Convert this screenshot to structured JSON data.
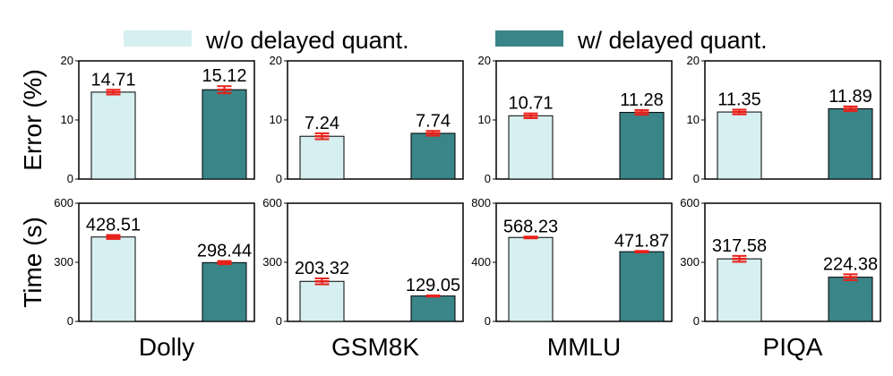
{
  "legend": {
    "items": [
      {
        "label": "w/o delayed quant.",
        "color": "#d6eff1"
      },
      {
        "label": "w/ delayed quant.",
        "color": "#3a8588"
      }
    ]
  },
  "colors": {
    "without": "#d6eff1",
    "with": "#3a8588",
    "error_bar": "#e8201a",
    "edge": "#000000"
  },
  "chart_data": [
    {
      "type": "bar",
      "row": "error",
      "dataset": "Dolly",
      "series": [
        {
          "name": "w/o delayed quant.",
          "value": 14.71,
          "err": 0.4
        },
        {
          "name": "w/ delayed quant.",
          "value": 15.12,
          "err": 0.6
        }
      ],
      "ylabel": "Error (%)",
      "ylim": [
        0,
        20
      ],
      "yticks": [
        0,
        10,
        20
      ],
      "xlabel": ""
    },
    {
      "type": "bar",
      "row": "error",
      "dataset": "GSM8K",
      "series": [
        {
          "name": "w/o delayed quant.",
          "value": 7.24,
          "err": 0.5
        },
        {
          "name": "w/ delayed quant.",
          "value": 7.74,
          "err": 0.4
        }
      ],
      "ylim": [
        0,
        20
      ],
      "yticks": [
        0,
        10,
        20
      ],
      "xlabel": ""
    },
    {
      "type": "bar",
      "row": "error",
      "dataset": "MMLU",
      "series": [
        {
          "name": "w/o delayed quant.",
          "value": 10.71,
          "err": 0.4
        },
        {
          "name": "w/ delayed quant.",
          "value": 11.28,
          "err": 0.4
        }
      ],
      "ylim": [
        0,
        20
      ],
      "yticks": [
        0,
        10,
        20
      ],
      "xlabel": ""
    },
    {
      "type": "bar",
      "row": "error",
      "dataset": "PIQA",
      "series": [
        {
          "name": "w/o delayed quant.",
          "value": 11.35,
          "err": 0.4
        },
        {
          "name": "w/ delayed quant.",
          "value": 11.89,
          "err": 0.4
        }
      ],
      "ylim": [
        0,
        20
      ],
      "yticks": [
        0,
        10,
        20
      ],
      "xlabel": ""
    },
    {
      "type": "bar",
      "row": "time",
      "dataset": "Dolly",
      "series": [
        {
          "name": "w/o delayed quant.",
          "value": 428.51,
          "err": 10
        },
        {
          "name": "w/ delayed quant.",
          "value": 298.44,
          "err": 8
        }
      ],
      "ylabel": "Time (s)",
      "ylim": [
        0,
        600
      ],
      "yticks": [
        0,
        300,
        600
      ],
      "xlabel": "Dolly"
    },
    {
      "type": "bar",
      "row": "time",
      "dataset": "GSM8K",
      "series": [
        {
          "name": "w/o delayed quant.",
          "value": 203.32,
          "err": 15
        },
        {
          "name": "w/ delayed quant.",
          "value": 129.05,
          "err": 3
        }
      ],
      "ylim": [
        0,
        600
      ],
      "yticks": [
        0,
        300,
        600
      ],
      "xlabel": "GSM8K"
    },
    {
      "type": "bar",
      "row": "time",
      "dataset": "MMLU",
      "series": [
        {
          "name": "w/o delayed quant.",
          "value": 568.23,
          "err": 6
        },
        {
          "name": "w/ delayed quant.",
          "value": 471.87,
          "err": 5
        }
      ],
      "ylim": [
        0,
        800
      ],
      "yticks": [
        0,
        400,
        800
      ],
      "xlabel": "MMLU"
    },
    {
      "type": "bar",
      "row": "time",
      "dataset": "PIQA",
      "series": [
        {
          "name": "w/o delayed quant.",
          "value": 317.58,
          "err": 15
        },
        {
          "name": "w/ delayed quant.",
          "value": 224.38,
          "err": 15
        }
      ],
      "ylim": [
        0,
        600
      ],
      "yticks": [
        0,
        300,
        600
      ],
      "xlabel": "PIQA"
    }
  ]
}
